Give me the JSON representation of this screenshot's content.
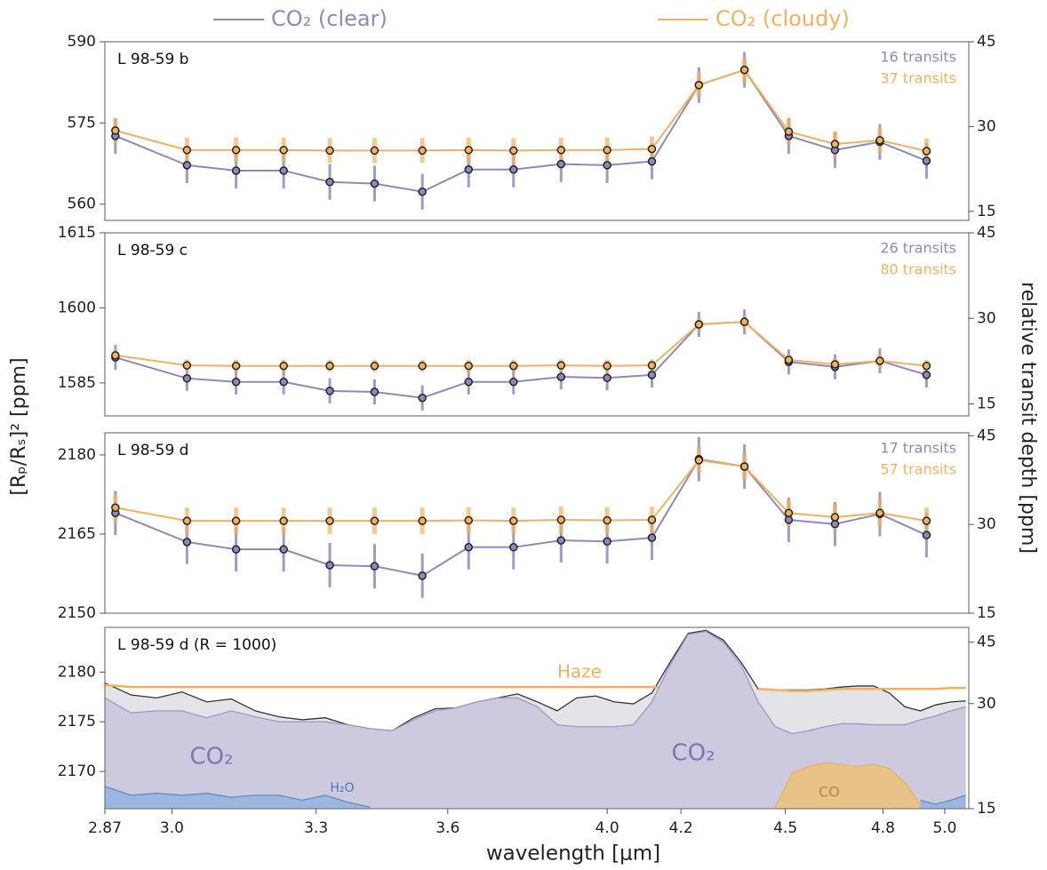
{
  "ylabel": "[Rₚ/Rₛ]² [ppm]",
  "y2label": "relative transit depth [ppm]",
  "chart_data": [
    {
      "type": "errorbar",
      "label": "L 98-59 b",
      "xlog": true,
      "xlim": [
        2.87,
        5.08
      ],
      "x": [
        2.89,
        3.03,
        3.13,
        3.23,
        3.33,
        3.43,
        3.54,
        3.65,
        3.76,
        3.88,
        4.0,
        4.12,
        4.25,
        4.38,
        4.51,
        4.65,
        4.79,
        4.94
      ],
      "ylim": [
        557,
        590
      ],
      "yticks": [
        560,
        575,
        590
      ],
      "y2lim": [
        13.4,
        45
      ],
      "y2ticks": [
        15,
        30,
        45
      ],
      "notes": [
        "16 transits",
        "37 transits"
      ],
      "series": [
        {
          "name": "CO₂ (clear)",
          "color": "#8e88bd",
          "error": 3.3,
          "values": [
            572.6,
            567.2,
            566.2,
            566.2,
            564.1,
            563.8,
            562.3,
            566.4,
            566.4,
            567.4,
            567.2,
            567.9,
            582.0,
            584.8,
            572.6,
            570.0,
            571.5,
            568.0
          ]
        },
        {
          "name": "CO₂ (cloudy)",
          "color": "#f0b25e",
          "error": 2.3,
          "values": [
            573.6,
            570.0,
            570.0,
            570.0,
            569.9,
            569.9,
            569.9,
            570.0,
            569.9,
            570.0,
            570.0,
            570.2,
            582.0,
            584.8,
            573.4,
            571.1,
            571.8,
            569.8
          ]
        }
      ]
    },
    {
      "type": "errorbar",
      "label": "L 98-59 c",
      "xlog": true,
      "xlim": [
        2.87,
        5.08
      ],
      "x": [
        2.89,
        3.03,
        3.13,
        3.23,
        3.33,
        3.43,
        3.54,
        3.65,
        3.76,
        3.88,
        4.0,
        4.12,
        4.25,
        4.38,
        4.51,
        4.65,
        4.79,
        4.94
      ],
      "ylim": [
        1578.4,
        1615
      ],
      "yticks": [
        1585,
        1600,
        1615
      ],
      "y2lim": [
        12.9,
        45
      ],
      "y2ticks": [
        15,
        30,
        45
      ],
      "notes": [
        "26 transits",
        "80 transits"
      ],
      "series": [
        {
          "color": "#8e88bd",
          "error": 2.5,
          "values": [
            1590.1,
            1585.9,
            1585.2,
            1585.2,
            1583.4,
            1583.2,
            1582.0,
            1585.2,
            1585.2,
            1586.2,
            1586.0,
            1586.6,
            1596.7,
            1597.2,
            1589.2,
            1588.2,
            1589.4,
            1586.6
          ]
        },
        {
          "color": "#f0b25e",
          "error": 1.2,
          "values": [
            1590.5,
            1588.5,
            1588.4,
            1588.4,
            1588.4,
            1588.4,
            1588.4,
            1588.4,
            1588.4,
            1588.5,
            1588.4,
            1588.5,
            1596.7,
            1597.2,
            1589.6,
            1588.7,
            1589.4,
            1588.4
          ]
        }
      ]
    },
    {
      "type": "errorbar",
      "label": "L 98-59 d",
      "xlog": true,
      "xlim": [
        2.87,
        5.08
      ],
      "x": [
        2.89,
        3.03,
        3.13,
        3.23,
        3.33,
        3.43,
        3.54,
        3.65,
        3.76,
        3.88,
        4.0,
        4.12,
        4.25,
        4.38,
        4.51,
        4.65,
        4.79,
        4.94
      ],
      "ylim": [
        2150,
        2184.2
      ],
      "yticks": [
        2150,
        2165,
        2180
      ],
      "y2lim": [
        15,
        45.5
      ],
      "y2ticks": [
        15,
        30,
        45
      ],
      "notes": [
        "17 transits",
        "57 transits"
      ],
      "series": [
        {
          "color": "#8e88bd",
          "error": 4.2,
          "values": [
            2169.0,
            2163.5,
            2162.1,
            2162.1,
            2159.1,
            2158.9,
            2157.1,
            2162.5,
            2162.5,
            2163.8,
            2163.6,
            2164.3,
            2179.2,
            2177.8,
            2167.7,
            2166.9,
            2168.8,
            2164.8
          ]
        },
        {
          "color": "#f0b25e",
          "error": 2.5,
          "values": [
            2170.0,
            2167.5,
            2167.5,
            2167.5,
            2167.5,
            2167.5,
            2167.5,
            2167.6,
            2167.5,
            2167.7,
            2167.6,
            2167.7,
            2179.0,
            2177.8,
            2169.0,
            2168.2,
            2169.0,
            2167.5
          ]
        }
      ]
    },
    {
      "type": "area",
      "label": "L 98-59 d (R = 1000)",
      "xlog": true,
      "xlim": [
        2.87,
        5.08
      ],
      "xlabel": "wavelength [μm]",
      "xticks": [
        2.87,
        {
          "value": 3,
          "label": "3.0"
        },
        3.3,
        3.6,
        {
          "value": 4,
          "label": "4.0"
        },
        4.2,
        4.5,
        4.8,
        {
          "value": 5,
          "label": "5.0"
        }
      ],
      "x": [
        2.87,
        2.92,
        2.97,
        3.02,
        3.07,
        3.12,
        3.17,
        3.22,
        3.27,
        3.32,
        3.37,
        3.42,
        3.47,
        3.52,
        3.57,
        3.62,
        3.67,
        3.72,
        3.77,
        3.82,
        3.87,
        3.92,
        3.97,
        4.02,
        4.07,
        4.12,
        4.17,
        4.22,
        4.27,
        4.32,
        4.37,
        4.42,
        4.47,
        4.52,
        4.57,
        4.62,
        4.67,
        4.72,
        4.77,
        4.82,
        4.87,
        4.92,
        4.97,
        5.02,
        5.07
      ],
      "ylim": [
        2166.25,
        2184.5
      ],
      "yticks": [
        2170,
        2175,
        2180
      ],
      "y2log": true,
      "y2lim": [
        15,
        49.6
      ],
      "y2ticks": [
        15,
        30,
        45
      ],
      "annotations": [
        "Haze",
        "CO₂",
        "CO₂",
        "H₂O",
        "CO"
      ],
      "series": [
        {
          "color": "#333333",
          "fill": "#e4e4e8",
          "values": [
            2178.9,
            2177.7,
            2177.4,
            2178.0,
            2177.0,
            2177.3,
            2176.1,
            2175.5,
            2175.2,
            2175.4,
            2174.7,
            2174.3,
            2174.1,
            2175.4,
            2176.3,
            2176.4,
            2177.0,
            2177.4,
            2177.8,
            2177.0,
            2176.1,
            2177.4,
            2177.6,
            2177.0,
            2176.8,
            2177.9,
            2181.0,
            2183.9,
            2184.2,
            2183.2,
            2181.0,
            2178.3,
            2178.2,
            2178.2,
            2178.2,
            2178.3,
            2178.5,
            2178.6,
            2178.6,
            2177.9,
            2176.5,
            2176.1,
            2176.7,
            2177.0,
            2177.1
          ]
        },
        {
          "color": "#f2b15e",
          "values": [
            2178.7,
            2178.5,
            2178.5,
            2178.5,
            2178.5,
            2178.5,
            2178.5,
            2178.5,
            2178.5,
            2178.5,
            2178.5,
            2178.5,
            2178.5,
            2178.5,
            2178.5,
            2178.5,
            2178.5,
            2178.5,
            2178.5,
            2178.5,
            2178.5,
            2178.5,
            2178.5,
            2178.5,
            2178.5,
            2178.5,
            2178.5,
            null,
            null,
            null,
            null,
            2178.3,
            2178.2,
            2178.1,
            2178.1,
            2178.2,
            2178.3,
            2178.3,
            2178.3,
            2178.3,
            2178.3,
            2178.3,
            2178.3,
            2178.4,
            2178.4
          ]
        },
        {
          "color": "#9d97c8",
          "fill": "#cdcae0",
          "values": [
            2177.4,
            2175.9,
            2176.1,
            2176.1,
            2175.4,
            2176.1,
            2175.5,
            2175.0,
            2175.0,
            2175.0,
            2174.7,
            2174.3,
            2174.1,
            2175.2,
            2176.1,
            2176.4,
            2177.0,
            2177.4,
            2177.4,
            2176.5,
            2174.7,
            2174.5,
            2174.5,
            2174.5,
            2174.7,
            2177.0,
            2180.7,
            2183.8,
            2184.1,
            2183.0,
            2180.7,
            2177.0,
            2174.5,
            2173.8,
            2174.1,
            2174.5,
            2174.8,
            2174.8,
            2174.7,
            2174.7,
            2174.7,
            2175.2,
            2175.6,
            2176.1,
            2176.5
          ]
        },
        {
          "color": "#5b8cc8",
          "fill": "#8fb2de",
          "values": [
            2168.5,
            2167.6,
            2167.8,
            2167.6,
            2167.8,
            2167.4,
            2167.6,
            2167.6,
            2167.1,
            2167.6,
            2166.9,
            2166.4,
            null,
            null,
            null,
            null,
            null,
            null,
            null,
            null,
            null,
            null,
            null,
            null,
            null,
            null,
            null,
            null,
            null,
            null,
            null,
            null,
            null,
            null,
            null,
            null,
            null,
            null,
            null,
            null,
            null,
            2167.1,
            2166.7,
            2167.1,
            2167.6
          ]
        },
        {
          "color": "#eab062",
          "fill": "#f0bf72",
          "values": [
            null,
            null,
            null,
            null,
            null,
            null,
            null,
            null,
            null,
            null,
            null,
            null,
            null,
            null,
            null,
            null,
            null,
            null,
            null,
            null,
            null,
            null,
            null,
            null,
            null,
            null,
            null,
            null,
            null,
            null,
            null,
            null,
            2166.4,
            2169.8,
            2170.5,
            2170.9,
            2170.7,
            2170.5,
            2170.7,
            2170.3,
            2168.9,
            2166.7,
            null,
            null,
            null
          ]
        }
      ]
    }
  ]
}
